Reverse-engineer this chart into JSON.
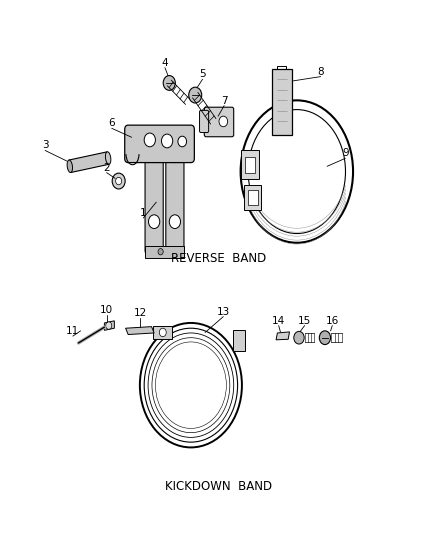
{
  "bg_color": "#ffffff",
  "line_color": "#000000",
  "text_color": "#000000",
  "reverse_band_label": "REVERSE  BAND",
  "kickdown_band_label": "KICKDOWN  BAND",
  "fig_width": 4.38,
  "fig_height": 5.33,
  "dpi": 100
}
